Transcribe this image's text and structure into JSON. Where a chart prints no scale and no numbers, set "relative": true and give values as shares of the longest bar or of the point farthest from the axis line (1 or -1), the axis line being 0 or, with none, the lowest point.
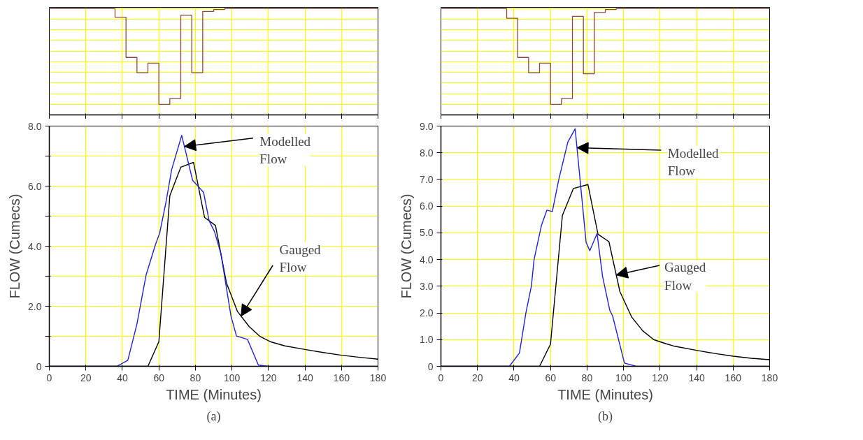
{
  "chart_data": [
    {
      "type": "step",
      "relative": true,
      "x": [
        0,
        36,
        42,
        48,
        54,
        60,
        66,
        72,
        78,
        84,
        90,
        96,
        180
      ],
      "series": [
        {
          "color": "#8b4a3a",
          "values": [
            0,
            -0.09,
            -0.51,
            -0.67,
            -0.57,
            -1,
            -0.94,
            -0.07,
            -0.67,
            -0.03,
            -0.01,
            0,
            0
          ]
        }
      ],
      "xlim": [
        0,
        180
      ],
      "xticks": [
        0,
        20,
        40,
        60,
        80,
        100,
        120,
        140,
        160,
        180
      ],
      "tick_labels": false,
      "grid": true
    },
    {
      "type": "line",
      "xlabel": "TIME (Minutes)",
      "ylabel": "FLOW (Cumecs)",
      "xlim": [
        0,
        180
      ],
      "ylim": [
        0,
        8
      ],
      "xticks": [
        0,
        20,
        40,
        60,
        80,
        100,
        120,
        140,
        160,
        180
      ],
      "yticks": [
        0,
        {
          "value": 1,
          "label": null
        },
        {
          "value": 2,
          "label": "2.0"
        },
        {
          "value": 3,
          "label": null
        },
        {
          "value": 4,
          "label": "4.0"
        },
        {
          "value": 5,
          "label": null
        },
        {
          "value": 6,
          "label": "6.0"
        },
        {
          "value": 7,
          "label": null
        },
        {
          "value": 8,
          "label": "8.0"
        }
      ],
      "grid": true,
      "series": [
        {
          "color": "#000000",
          "x": [
            0,
            54,
            60,
            66,
            72,
            79,
            85,
            91,
            97,
            103,
            109.5,
            115.5,
            121,
            129,
            140,
            150,
            160,
            170,
            180
          ],
          "values": [
            0,
            0,
            0.82,
            5.68,
            6.63,
            6.79,
            4.96,
            4.69,
            2.78,
            1.83,
            1.32,
            0.99,
            0.82,
            0.68,
            0.56,
            0.46,
            0.37,
            0.3,
            0.24
          ]
        },
        {
          "color": "#2020e0",
          "x": [
            0,
            37,
            43,
            48,
            53,
            58,
            60.5,
            64,
            67,
            72.5,
            78.5,
            84.5,
            87.5,
            90.5,
            94,
            99.5,
            102.5,
            108.5,
            114.5,
            120,
            180
          ],
          "values": [
            0,
            0,
            0.2,
            1.41,
            3.04,
            4.03,
            4.45,
            5.5,
            6.55,
            7.69,
            6.19,
            5.79,
            4.85,
            4.48,
            3.74,
            1.67,
            1.01,
            0.9,
            0.04,
            0,
            0
          ]
        }
      ],
      "annotations": [
        {
          "text": "Modelled\nFlow",
          "x": 74,
          "y": 7.32
        },
        {
          "text": "Gauged\nFlow",
          "x": 105,
          "y": 1.67
        },
        "(a)"
      ]
    },
    {
      "type": "step",
      "relative": true,
      "x": [
        0,
        36,
        42,
        48,
        54,
        60,
        66,
        72,
        78,
        84,
        90,
        96,
        180
      ],
      "series": [
        {
          "color": "#8b4a3a",
          "values": [
            0,
            -0.1,
            -0.51,
            -0.67,
            -0.57,
            -1,
            -0.94,
            -0.08,
            -0.68,
            -0.04,
            -0.01,
            0,
            0
          ]
        }
      ],
      "xlim": [
        0,
        180
      ],
      "xticks": [
        0,
        20,
        40,
        60,
        80,
        100,
        120,
        140,
        160,
        180
      ],
      "tick_labels": false,
      "grid": true
    },
    {
      "type": "line",
      "xlabel": "TIME (Minutes)",
      "ylabel": "FLOW (Cumecs)",
      "xlim": [
        0,
        180
      ],
      "ylim": [
        0,
        9
      ],
      "xticks": [
        0,
        20,
        40,
        60,
        80,
        100,
        120,
        140,
        160,
        180
      ],
      "yticks": [
        0,
        {
          "value": 1,
          "label": "1.0"
        },
        {
          "value": 2,
          "label": "2.0"
        },
        {
          "value": 3,
          "label": "3.0"
        },
        {
          "value": 4,
          "label": "4.0"
        },
        {
          "value": 5,
          "label": "5.0"
        },
        {
          "value": 6,
          "label": "6.0"
        },
        {
          "value": 7,
          "label": "7.0"
        },
        {
          "value": 8,
          "label": "8.0"
        },
        {
          "value": 9,
          "label": "9.0"
        }
      ],
      "grid": true,
      "series": [
        {
          "color": "#000000",
          "x": [
            0,
            54,
            60,
            66.5,
            72.5,
            80.5,
            86,
            92,
            98,
            104.5,
            110.5,
            116.5,
            123,
            127.5,
            140,
            150,
            160,
            170,
            180
          ],
          "values": [
            0,
            0,
            0.83,
            5.65,
            6.66,
            6.81,
            4.95,
            4.67,
            2.8,
            1.84,
            1.33,
            1.0,
            0.85,
            0.76,
            0.6,
            0.48,
            0.38,
            0.3,
            0.25
          ]
        },
        {
          "color": "#2020e0",
          "x": [
            0,
            37.5,
            43,
            46.5,
            49.5,
            51,
            55,
            58,
            61,
            64.5,
            69.5,
            73.5,
            79.5,
            81.5,
            85.5,
            88.5,
            92.5,
            94,
            100.5,
            107,
            180
          ],
          "values": [
            0,
            0,
            0.5,
            1.99,
            3.0,
            4.0,
            5.27,
            5.85,
            5.8,
            6.99,
            8.4,
            8.9,
            4.64,
            4.33,
            4.97,
            3.37,
            2.09,
            1.89,
            0.12,
            0,
            0
          ]
        }
      ],
      "annotations": [
        {
          "text": "Modelled\nFlow",
          "x": 74.5,
          "y": 8.19
        },
        {
          "text": "Gauged\nFlow",
          "x": 96,
          "y": 3.42
        },
        "(b)"
      ]
    }
  ]
}
